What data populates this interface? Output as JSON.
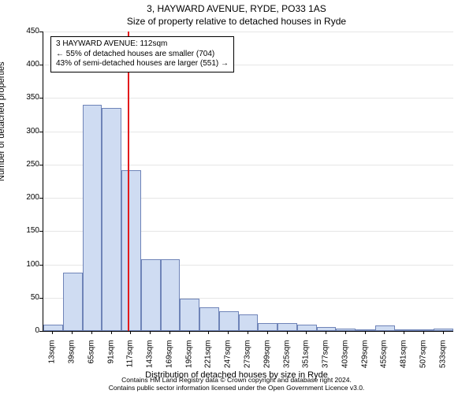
{
  "chart": {
    "type": "histogram",
    "title_line1": "3, HAYWARD AVENUE, RYDE, PO33 1AS",
    "title_line2": "Size of property relative to detached houses in Ryde",
    "title_fontsize": 12,
    "x_axis_label": "Distribution of detached houses by size in Ryde",
    "y_axis_label": "Number of detached properties",
    "axis_label_fontsize": 11,
    "tick_fontsize": 10,
    "background_color": "#ffffff",
    "grid_color": "#e6e6e6",
    "axis_color": "#000000",
    "bar_fill_color": "#cfdcf2",
    "bar_border_color": "#6f84b8",
    "bar_border_width": 1,
    "reference_line_color": "#e31a1c",
    "reference_line_width": 2,
    "xlim": [
      0,
      546
    ],
    "ylim": [
      0,
      450
    ],
    "ytick_step": 50,
    "bin_width": 26,
    "bar_gap_ratio": 0.0,
    "annotation": {
      "line1": "3 HAYWARD AVENUE: 112sqm",
      "line2": "← 55% of detached houses are smaller (704)",
      "line3": "43% of semi-detached houses are larger (551) →",
      "border_color": "#000000",
      "background_color": "#ffffff",
      "fontsize": 10
    },
    "reference_x": 112,
    "x_tick_labels": [
      "13sqm",
      "39sqm",
      "65sqm",
      "91sqm",
      "117sqm",
      "143sqm",
      "169sqm",
      "195sqm",
      "221sqm",
      "247sqm",
      "273sqm",
      "299sqm",
      "325sqm",
      "351sqm",
      "377sqm",
      "403sqm",
      "429sqm",
      "455sqm",
      "481sqm",
      "507sqm",
      "533sqm"
    ],
    "values": [
      10,
      88,
      340,
      335,
      242,
      108,
      108,
      48,
      35,
      30,
      25,
      12,
      12,
      10,
      6,
      3,
      0,
      8,
      0,
      0,
      3
    ],
    "footer_line1": "Contains HM Land Registry data © Crown copyright and database right 2024.",
    "footer_line2": "Contains public sector information licensed under the Open Government Licence v3.0.",
    "footer_fontsize": 8.5
  }
}
